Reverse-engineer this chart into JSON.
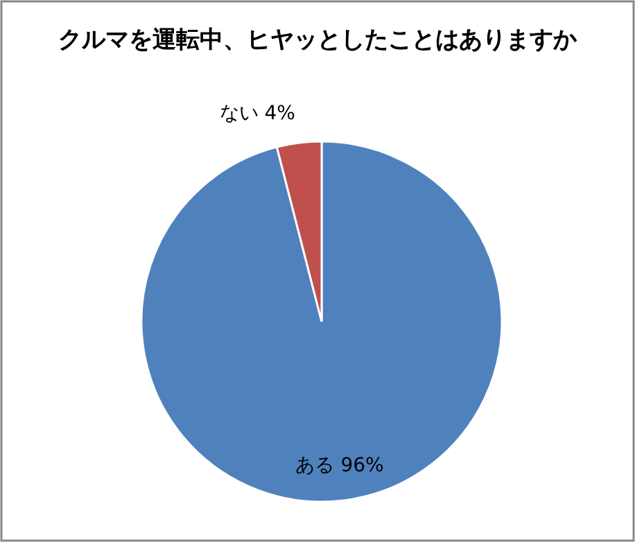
{
  "chart_data": {
    "type": "pie",
    "title": "クルマを運転中、ヒヤッとしたことはありますか",
    "categories": [
      "ある",
      "ない"
    ],
    "values": [
      96,
      4
    ],
    "colors": [
      "#4f81bd",
      "#c0504d"
    ],
    "value_labels": [
      "96%",
      "4%"
    ]
  }
}
